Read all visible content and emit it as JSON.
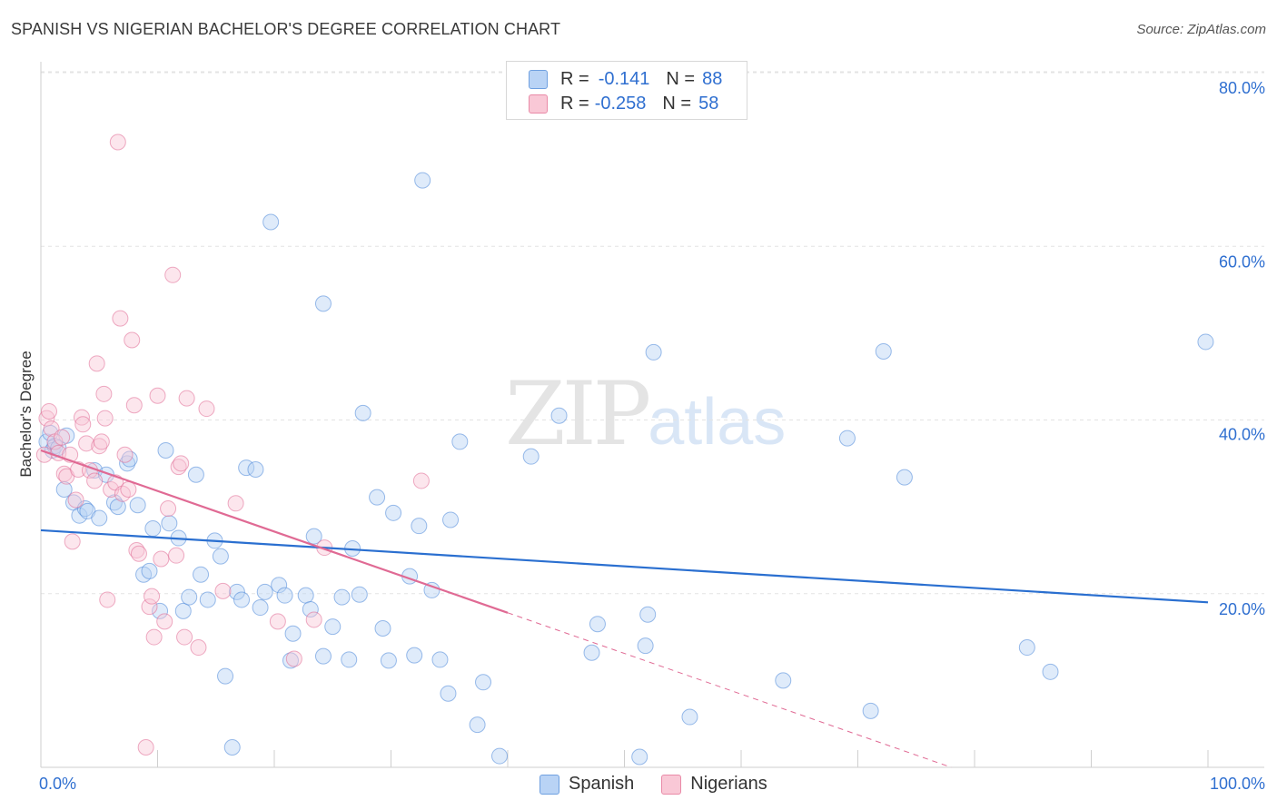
{
  "title": "SPANISH VS NIGERIAN BACHELOR'S DEGREE CORRELATION CHART",
  "source": "Source: ZipAtlas.com",
  "watermark": {
    "zip": "ZIP",
    "atlas": "atlas"
  },
  "legend": {
    "rows": [
      {
        "r_label": "R =",
        "r_value": "-0.141",
        "n_label": "N =",
        "n_value": "88"
      },
      {
        "r_label": "R =",
        "r_value": "-0.258",
        "n_label": "N =",
        "n_value": "58"
      }
    ]
  },
  "bottom_legend": {
    "spanish": "Spanish",
    "nigerians": "Nigerians"
  },
  "colors": {
    "spanish": "#4a86d8",
    "spanish_fill": "#b9d3f5",
    "nigerians": "#e06a94",
    "nigerians_fill": "#f9c8d6",
    "axis_label": "#2f6fd0"
  },
  "chart_data": {
    "type": "scatter",
    "title": "SPANISH VS NIGERIAN BACHELOR'S DEGREE CORRELATION CHART",
    "xlabel": "",
    "ylabel": "Bachelor's Degree",
    "xlim": [
      0,
      100
    ],
    "ylim": [
      0,
      82
    ],
    "x_tick_labels": [
      "0.0%",
      "100.0%"
    ],
    "y_ticks": [
      20,
      40,
      60,
      80
    ],
    "y_tick_labels": [
      "20.0%",
      "40.0%",
      "60.0%",
      "80.0%"
    ],
    "series": [
      {
        "name": "Spanish",
        "color": "#4a86d8",
        "trend": {
          "x0": 0,
          "y0": 27.3,
          "x1": 100,
          "y1": 19.0
        },
        "points": [
          [
            0.5,
            37.5
          ],
          [
            0.8,
            38.5
          ],
          [
            1.0,
            36.5
          ],
          [
            1.2,
            37.0
          ],
          [
            1.5,
            36.8
          ],
          [
            2.0,
            32.0
          ],
          [
            2.2,
            38.2
          ],
          [
            2.8,
            30.5
          ],
          [
            3.3,
            29.0
          ],
          [
            3.8,
            29.8
          ],
          [
            4.0,
            29.5
          ],
          [
            4.6,
            34.2
          ],
          [
            5.0,
            28.7
          ],
          [
            5.6,
            33.7
          ],
          [
            6.3,
            30.5
          ],
          [
            6.6,
            30.0
          ],
          [
            7.4,
            35.0
          ],
          [
            7.6,
            35.5
          ],
          [
            8.3,
            30.2
          ],
          [
            8.8,
            22.2
          ],
          [
            9.3,
            22.6
          ],
          [
            9.6,
            27.5
          ],
          [
            10.2,
            18.0
          ],
          [
            10.7,
            36.5
          ],
          [
            11.0,
            28.1
          ],
          [
            11.8,
            26.4
          ],
          [
            12.2,
            18.0
          ],
          [
            12.7,
            19.6
          ],
          [
            13.3,
            33.7
          ],
          [
            13.7,
            22.2
          ],
          [
            14.3,
            19.3
          ],
          [
            14.9,
            26.1
          ],
          [
            15.4,
            24.3
          ],
          [
            15.8,
            10.5
          ],
          [
            16.4,
            2.3
          ],
          [
            16.8,
            20.2
          ],
          [
            17.2,
            19.3
          ],
          [
            17.6,
            34.5
          ],
          [
            18.4,
            34.3
          ],
          [
            18.8,
            18.4
          ],
          [
            19.2,
            20.2
          ],
          [
            19.7,
            62.8
          ],
          [
            20.4,
            21.0
          ],
          [
            20.9,
            19.8
          ],
          [
            21.4,
            12.3
          ],
          [
            21.6,
            15.4
          ],
          [
            22.7,
            19.8
          ],
          [
            23.1,
            18.2
          ],
          [
            23.4,
            26.6
          ],
          [
            24.2,
            53.4
          ],
          [
            24.2,
            12.8
          ],
          [
            25.0,
            16.2
          ],
          [
            25.8,
            19.6
          ],
          [
            26.4,
            12.4
          ],
          [
            26.7,
            25.2
          ],
          [
            27.3,
            19.9
          ],
          [
            27.6,
            40.8
          ],
          [
            28.8,
            31.1
          ],
          [
            29.3,
            16.0
          ],
          [
            29.8,
            12.3
          ],
          [
            30.2,
            29.3
          ],
          [
            31.6,
            22.0
          ],
          [
            32.0,
            12.9
          ],
          [
            32.4,
            27.8
          ],
          [
            32.7,
            67.6
          ],
          [
            33.5,
            20.4
          ],
          [
            34.2,
            12.4
          ],
          [
            34.9,
            8.5
          ],
          [
            35.1,
            28.5
          ],
          [
            35.9,
            37.5
          ],
          [
            37.4,
            4.9
          ],
          [
            37.9,
            9.8
          ],
          [
            39.3,
            1.3
          ],
          [
            42.0,
            35.8
          ],
          [
            44.4,
            40.5
          ],
          [
            47.2,
            13.2
          ],
          [
            47.7,
            16.5
          ],
          [
            51.3,
            1.2
          ],
          [
            51.8,
            14.0
          ],
          [
            52.0,
            17.6
          ],
          [
            52.5,
            47.8
          ],
          [
            55.6,
            5.8
          ],
          [
            63.6,
            10.0
          ],
          [
            69.1,
            37.9
          ],
          [
            71.1,
            6.5
          ],
          [
            72.2,
            47.9
          ],
          [
            74.0,
            33.4
          ],
          [
            84.5,
            13.8
          ],
          [
            86.5,
            11.0
          ],
          [
            99.8,
            49.0
          ]
        ]
      },
      {
        "name": "Nigerians",
        "color": "#e06a94",
        "trend": {
          "x0": 0,
          "y0": 36.5,
          "x1": 40,
          "y1": 17.8,
          "dash_x1": 78,
          "dash_y1": 0
        },
        "points": [
          [
            0.3,
            36.0
          ],
          [
            0.5,
            40.2
          ],
          [
            0.7,
            41.0
          ],
          [
            0.9,
            39.0
          ],
          [
            1.2,
            37.5
          ],
          [
            1.5,
            36.2
          ],
          [
            1.8,
            38.0
          ],
          [
            2.0,
            33.8
          ],
          [
            2.2,
            33.5
          ],
          [
            2.5,
            36.0
          ],
          [
            2.7,
            26.0
          ],
          [
            3.0,
            30.8
          ],
          [
            3.2,
            34.3
          ],
          [
            3.5,
            40.3
          ],
          [
            3.6,
            39.5
          ],
          [
            3.9,
            37.3
          ],
          [
            4.2,
            34.2
          ],
          [
            4.6,
            33.0
          ],
          [
            4.8,
            46.5
          ],
          [
            5.0,
            37.0
          ],
          [
            5.2,
            37.5
          ],
          [
            5.4,
            43.0
          ],
          [
            5.5,
            40.2
          ],
          [
            5.7,
            19.3
          ],
          [
            6.0,
            32.0
          ],
          [
            6.4,
            32.8
          ],
          [
            6.6,
            72.0
          ],
          [
            6.8,
            51.7
          ],
          [
            7.0,
            31.5
          ],
          [
            7.2,
            36.0
          ],
          [
            7.5,
            32.0
          ],
          [
            7.8,
            49.2
          ],
          [
            8.0,
            41.7
          ],
          [
            8.2,
            25.0
          ],
          [
            8.4,
            24.6
          ],
          [
            9.0,
            2.3
          ],
          [
            9.3,
            18.5
          ],
          [
            9.5,
            19.7
          ],
          [
            9.7,
            15.0
          ],
          [
            10.0,
            42.8
          ],
          [
            10.3,
            24.0
          ],
          [
            10.6,
            16.8
          ],
          [
            10.9,
            29.8
          ],
          [
            11.3,
            56.7
          ],
          [
            11.6,
            24.4
          ],
          [
            11.8,
            34.6
          ],
          [
            12.0,
            35.0
          ],
          [
            12.3,
            15.0
          ],
          [
            12.5,
            42.5
          ],
          [
            13.5,
            13.8
          ],
          [
            14.2,
            41.3
          ],
          [
            15.6,
            20.3
          ],
          [
            16.7,
            30.4
          ],
          [
            20.3,
            16.8
          ],
          [
            21.7,
            12.5
          ],
          [
            23.4,
            17.0
          ],
          [
            24.3,
            25.3
          ],
          [
            32.6,
            33.0
          ]
        ]
      }
    ]
  }
}
